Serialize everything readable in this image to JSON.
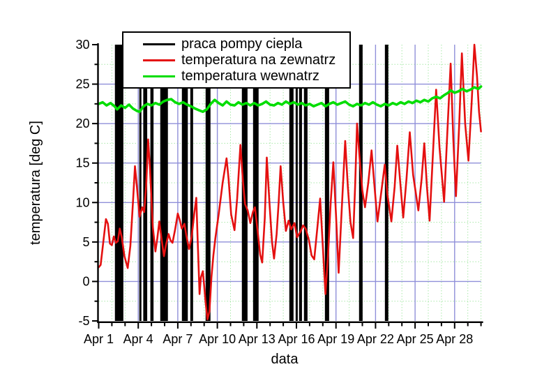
{
  "figure": {
    "background": "#ffffff",
    "axis_color": "#000000"
  },
  "legend": {
    "items": [
      {
        "label": "praca pompy ciepla",
        "color": "#000000"
      },
      {
        "label": "temperatura na zewnatrz",
        "color": "#e41010"
      },
      {
        "label": "temperatura wewnatrz",
        "color": "#00dd00"
      }
    ]
  },
  "axes": {
    "x_major_ticks": [
      {
        "day": 0,
        "label": "Apr 1"
      },
      {
        "day": 3,
        "label": "Apr 4"
      },
      {
        "day": 6,
        "label": "Apr 7"
      },
      {
        "day": 9,
        "label": "Apr 10"
      },
      {
        "day": 12,
        "label": "Apr 13"
      },
      {
        "day": 15,
        "label": "Apr 16"
      },
      {
        "day": 18,
        "label": "Apr 19"
      },
      {
        "day": 21,
        "label": "Apr 22"
      },
      {
        "day": 24,
        "label": "Apr 25"
      },
      {
        "day": 27,
        "label": "Apr 28"
      }
    ],
    "x_minor_days": [
      1,
      2,
      4,
      5,
      7,
      8,
      10,
      11,
      13,
      14,
      16,
      17,
      19,
      20,
      22,
      23,
      25,
      26,
      28,
      29
    ],
    "y_major_ticks": [
      {
        "value": 30,
        "label": "30"
      },
      {
        "value": 25,
        "label": "25"
      },
      {
        "value": 20,
        "label": "20"
      },
      {
        "value": 15,
        "label": "15"
      },
      {
        "value": 10,
        "label": "10"
      },
      {
        "value": 5,
        "label": "5"
      },
      {
        "value": 0,
        "label": "0"
      },
      {
        "value": -5,
        "label": "-5"
      }
    ],
    "y_minor_values": [
      27.5,
      22.5,
      17.5,
      12.5,
      7.5,
      2.5,
      -2.5
    ]
  },
  "grid": {
    "major_color": "#8f8fd9",
    "minor_color": "#a8e8a8"
  },
  "chart_data": {
    "type": "line",
    "title": "",
    "xlabel": "data",
    "ylabel": "temperatura [deg C]",
    "x_unit": "days since Apr 1",
    "xlim": [
      0,
      29
    ],
    "ylim": [
      -5,
      30
    ],
    "x_tick_labels": [
      "Apr 1",
      "Apr 4",
      "Apr 7",
      "Apr 10",
      "Apr 13",
      "Apr 16",
      "Apr 19",
      "Apr 22",
      "Apr 25",
      "Apr 28"
    ],
    "grid": "major solid blue every 5 deg / 3 days, minor dotted green every 2.5 deg / 1 day",
    "legend_position": "top-left inside",
    "series": [
      {
        "name": "temperatura na zewnatrz",
        "color": "#e41010",
        "points": [
          [
            0,
            1.8
          ],
          [
            0.15,
            2.1
          ],
          [
            0.35,
            5.0
          ],
          [
            0.55,
            7.9
          ],
          [
            0.7,
            7.3
          ],
          [
            0.85,
            4.8
          ],
          [
            1.0,
            4.6
          ],
          [
            1.15,
            5.7
          ],
          [
            1.3,
            4.9
          ],
          [
            1.45,
            5.1
          ],
          [
            1.6,
            6.7
          ],
          [
            1.75,
            5.6
          ],
          [
            1.95,
            3.2
          ],
          [
            2.2,
            1.7
          ],
          [
            2.4,
            4.5
          ],
          [
            2.6,
            10.0
          ],
          [
            2.75,
            14.6
          ],
          [
            2.9,
            12.0
          ],
          [
            3.1,
            8.2
          ],
          [
            3.3,
            9.4
          ],
          [
            3.45,
            8.8
          ],
          [
            3.6,
            12.0
          ],
          [
            3.75,
            18.0
          ],
          [
            3.9,
            14.0
          ],
          [
            4.1,
            7.0
          ],
          [
            4.3,
            3.8
          ],
          [
            4.45,
            5.5
          ],
          [
            4.6,
            7.6
          ],
          [
            4.8,
            5.0
          ],
          [
            4.95,
            3.2
          ],
          [
            5.1,
            4.6
          ],
          [
            5.3,
            6.0
          ],
          [
            5.45,
            5.2
          ],
          [
            5.6,
            4.9
          ],
          [
            5.8,
            6.6
          ],
          [
            6.0,
            8.6
          ],
          [
            6.15,
            7.8
          ],
          [
            6.3,
            6.7
          ],
          [
            6.5,
            7.3
          ],
          [
            6.65,
            5.8
          ],
          [
            6.85,
            4.1
          ],
          [
            7.05,
            5.6
          ],
          [
            7.25,
            8.6
          ],
          [
            7.4,
            10.6
          ],
          [
            7.5,
            5.5
          ],
          [
            7.65,
            -1.6
          ],
          [
            7.75,
            0.5
          ],
          [
            7.9,
            1.3
          ],
          [
            8.0,
            -0.5
          ],
          [
            8.1,
            -2.5
          ],
          [
            8.25,
            -4.8
          ],
          [
            8.4,
            -3.8
          ],
          [
            8.55,
            0.5
          ],
          [
            8.7,
            3.3
          ],
          [
            8.85,
            5.5
          ],
          [
            9.1,
            8.5
          ],
          [
            9.4,
            12.5
          ],
          [
            9.7,
            15.6
          ],
          [
            9.85,
            13.0
          ],
          [
            10.05,
            8.5
          ],
          [
            10.3,
            6.5
          ],
          [
            10.5,
            10.5
          ],
          [
            10.75,
            17.3
          ],
          [
            10.95,
            12.5
          ],
          [
            11.1,
            9.8
          ],
          [
            11.3,
            9.0
          ],
          [
            11.5,
            7.4
          ],
          [
            11.7,
            8.8
          ],
          [
            11.85,
            9.4
          ],
          [
            12.05,
            6.5
          ],
          [
            12.25,
            3.4
          ],
          [
            12.4,
            2.4
          ],
          [
            12.6,
            8.0
          ],
          [
            12.75,
            15.7
          ],
          [
            12.95,
            10.0
          ],
          [
            13.15,
            5.0
          ],
          [
            13.3,
            2.9
          ],
          [
            13.5,
            6.0
          ],
          [
            13.65,
            10.0
          ],
          [
            13.8,
            14.6
          ],
          [
            14.0,
            10.0
          ],
          [
            14.2,
            6.4
          ],
          [
            14.4,
            7.7
          ],
          [
            14.6,
            6.6
          ],
          [
            14.85,
            7.4
          ],
          [
            15.05,
            5.6
          ],
          [
            15.3,
            6.3
          ],
          [
            15.5,
            7.1
          ],
          [
            15.7,
            6.7
          ],
          [
            15.95,
            5.2
          ],
          [
            16.15,
            3.3
          ],
          [
            16.35,
            2.8
          ],
          [
            16.6,
            7.0
          ],
          [
            16.8,
            10.5
          ],
          [
            17.0,
            4.5
          ],
          [
            17.2,
            -1.6
          ],
          [
            17.4,
            3.5
          ],
          [
            17.6,
            10.0
          ],
          [
            17.8,
            15.1
          ],
          [
            18.0,
            8.5
          ],
          [
            18.2,
            1.1
          ],
          [
            18.4,
            8.0
          ],
          [
            18.7,
            17.8
          ],
          [
            18.9,
            12.0
          ],
          [
            19.1,
            7.5
          ],
          [
            19.3,
            5.5
          ],
          [
            19.45,
            12.0
          ],
          [
            19.6,
            20.0
          ],
          [
            19.8,
            15.5
          ],
          [
            20.0,
            11.5
          ],
          [
            20.2,
            9.4
          ],
          [
            20.45,
            12.5
          ],
          [
            20.7,
            16.6
          ],
          [
            20.9,
            12.5
          ],
          [
            21.15,
            7.6
          ],
          [
            21.45,
            11.5
          ],
          [
            21.7,
            14.8
          ],
          [
            21.9,
            11.0
          ],
          [
            22.2,
            7.6
          ],
          [
            22.45,
            12.0
          ],
          [
            22.65,
            17.2
          ],
          [
            22.85,
            13.0
          ],
          [
            23.1,
            8.1
          ],
          [
            23.35,
            13.0
          ],
          [
            23.6,
            18.9
          ],
          [
            23.85,
            13.5
          ],
          [
            24.25,
            9.0
          ],
          [
            24.5,
            13.0
          ],
          [
            24.7,
            17.5
          ],
          [
            24.9,
            12.0
          ],
          [
            25.1,
            7.7
          ],
          [
            25.35,
            16.0
          ],
          [
            25.6,
            24.3
          ],
          [
            25.85,
            17.0
          ],
          [
            26.2,
            10.1
          ],
          [
            26.45,
            19.0
          ],
          [
            26.7,
            27.6
          ],
          [
            26.9,
            18.0
          ],
          [
            27.1,
            10.8
          ],
          [
            27.35,
            20.0
          ],
          [
            27.55,
            28.9
          ],
          [
            27.8,
            20.0
          ],
          [
            28.05,
            15.3
          ],
          [
            28.3,
            23.0
          ],
          [
            28.5,
            30.0
          ],
          [
            28.7,
            26.0
          ],
          [
            28.85,
            21.5
          ],
          [
            29.0,
            19.0
          ]
        ]
      },
      {
        "name": "temperatura wewnatrz",
        "color": "#00dd00",
        "points": [
          [
            0,
            22.5
          ],
          [
            0.3,
            22.7
          ],
          [
            0.6,
            22.3
          ],
          [
            0.9,
            22.6
          ],
          [
            1.2,
            22.2
          ],
          [
            1.4,
            21.8
          ],
          [
            1.7,
            22.3
          ],
          [
            2.0,
            22.0
          ],
          [
            2.3,
            22.4
          ],
          [
            2.6,
            21.9
          ],
          [
            2.9,
            21.6
          ],
          [
            3.1,
            21.5
          ],
          [
            3.4,
            22.2
          ],
          [
            3.7,
            22.5
          ],
          [
            4.0,
            22.3
          ],
          [
            4.3,
            22.6
          ],
          [
            4.6,
            22.4
          ],
          [
            4.9,
            22.8
          ],
          [
            5.2,
            23.0
          ],
          [
            5.5,
            23.1
          ],
          [
            5.8,
            22.7
          ],
          [
            6.1,
            22.5
          ],
          [
            6.4,
            22.7
          ],
          [
            6.7,
            22.4
          ],
          [
            7.0,
            22.2
          ],
          [
            7.3,
            21.9
          ],
          [
            7.6,
            21.7
          ],
          [
            7.9,
            21.5
          ],
          [
            8.2,
            21.8
          ],
          [
            8.5,
            22.5
          ],
          [
            8.8,
            23.0
          ],
          [
            9.1,
            22.6
          ],
          [
            9.4,
            22.3
          ],
          [
            9.7,
            22.8
          ],
          [
            10.0,
            22.4
          ],
          [
            10.3,
            22.3
          ],
          [
            10.6,
            22.7
          ],
          [
            10.9,
            22.4
          ],
          [
            11.2,
            22.6
          ],
          [
            11.5,
            22.3
          ],
          [
            11.8,
            22.6
          ],
          [
            12.1,
            22.3
          ],
          [
            12.4,
            22.5
          ],
          [
            12.7,
            22.8
          ],
          [
            13.0,
            22.4
          ],
          [
            13.3,
            22.3
          ],
          [
            13.6,
            22.6
          ],
          [
            13.9,
            22.4
          ],
          [
            14.2,
            22.8
          ],
          [
            14.5,
            22.5
          ],
          [
            14.8,
            22.7
          ],
          [
            15.1,
            22.4
          ],
          [
            15.4,
            22.6
          ],
          [
            15.7,
            22.3
          ],
          [
            16.0,
            22.5
          ],
          [
            16.3,
            22.2
          ],
          [
            16.6,
            22.4
          ],
          [
            16.9,
            22.6
          ],
          [
            17.2,
            22.2
          ],
          [
            17.5,
            22.5
          ],
          [
            17.8,
            22.7
          ],
          [
            18.1,
            22.4
          ],
          [
            18.4,
            22.6
          ],
          [
            18.7,
            22.8
          ],
          [
            19.0,
            22.4
          ],
          [
            19.3,
            22.2
          ],
          [
            19.6,
            22.5
          ],
          [
            19.9,
            22.3
          ],
          [
            20.2,
            22.6
          ],
          [
            20.5,
            22.4
          ],
          [
            20.8,
            22.7
          ],
          [
            21.1,
            22.4
          ],
          [
            21.4,
            22.2
          ],
          [
            21.7,
            22.5
          ],
          [
            22.0,
            22.3
          ],
          [
            22.3,
            22.6
          ],
          [
            22.6,
            22.4
          ],
          [
            22.9,
            22.7
          ],
          [
            23.2,
            22.5
          ],
          [
            23.5,
            22.8
          ],
          [
            23.8,
            22.6
          ],
          [
            24.1,
            22.9
          ],
          [
            24.4,
            22.7
          ],
          [
            24.7,
            23.0
          ],
          [
            25.0,
            22.8
          ],
          [
            25.3,
            23.2
          ],
          [
            25.6,
            23.4
          ],
          [
            25.9,
            23.2
          ],
          [
            26.2,
            23.6
          ],
          [
            26.5,
            23.9
          ],
          [
            26.7,
            24.2
          ],
          [
            27.0,
            23.9
          ],
          [
            27.3,
            24.1
          ],
          [
            27.6,
            24.4
          ],
          [
            27.9,
            24.1
          ],
          [
            28.2,
            24.3
          ],
          [
            28.5,
            24.6
          ],
          [
            28.8,
            24.4
          ],
          [
            29.0,
            24.7
          ]
        ]
      }
    ],
    "pump_on_intervals": {
      "name": "praca pompy ciepla",
      "color": "#000000",
      "value_span": [
        -5,
        30
      ],
      "intervals": [
        [
          1.23,
          1.87
        ],
        [
          3.08,
          3.24
        ],
        [
          3.38,
          3.68
        ],
        [
          3.92,
          4.16
        ],
        [
          4.67,
          5.25
        ],
        [
          6.31,
          6.76
        ],
        [
          6.95,
          7.16
        ],
        [
          8.11,
          8.48
        ],
        [
          10.86,
          11.29
        ],
        [
          11.71,
          12.13
        ],
        [
          14.46,
          14.78
        ],
        [
          14.94,
          15.1
        ],
        [
          15.2,
          15.42
        ],
        [
          15.57,
          15.84
        ],
        [
          17.16,
          17.48
        ],
        [
          19.75,
          20.02
        ],
        [
          21.71,
          21.97
        ]
      ]
    }
  }
}
